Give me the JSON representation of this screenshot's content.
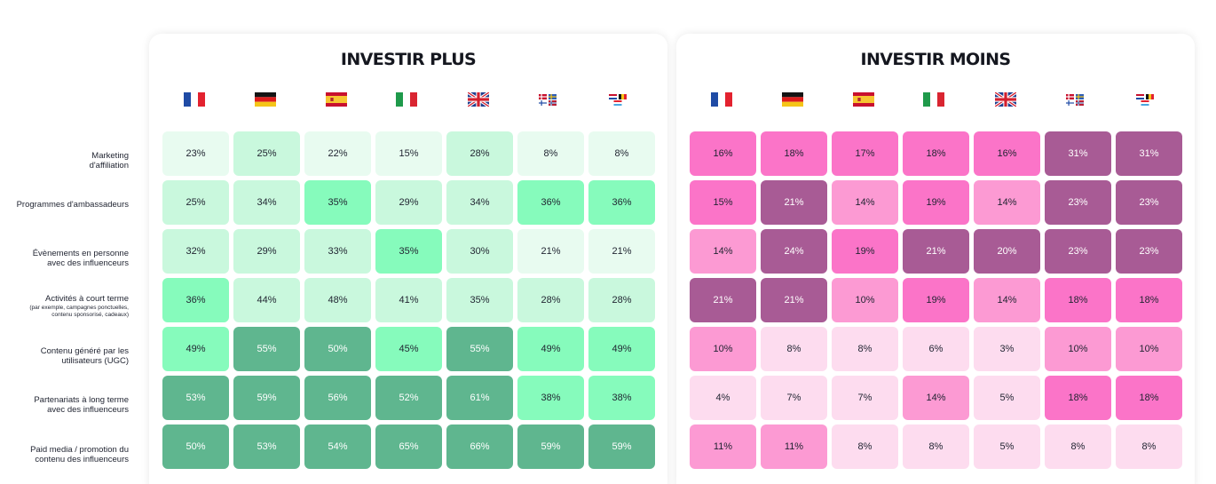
{
  "row_labels": [
    {
      "text": "Marketing\nd'affiliation",
      "sub": ""
    },
    {
      "text": "Programmes d'ambassadeurs",
      "sub": ""
    },
    {
      "text": "Évènements en personne\navec des influenceurs",
      "sub": ""
    },
    {
      "text": "Activités à court terme",
      "sub": "(par exemple, campagnes ponctuelles,\ncontenu sponsorisé, cadeaux)"
    },
    {
      "text": "Contenu généré par les\nutilisateurs (UGC)",
      "sub": ""
    },
    {
      "text": "Partenariats à long terme\navec des influenceurs",
      "sub": ""
    },
    {
      "text": "Paid media / promotion du\ncontenu des influenceurs",
      "sub": ""
    }
  ],
  "columns": [
    {
      "icon": "france-flag-icon"
    },
    {
      "icon": "germany-flag-icon"
    },
    {
      "icon": "spain-flag-icon"
    },
    {
      "icon": "italy-flag-icon"
    },
    {
      "icon": "uk-flag-icon"
    },
    {
      "icon": "nordics-flags-icon"
    },
    {
      "icon": "benelux-flags-icon"
    }
  ],
  "colors": {
    "plus_scale": [
      "#e8fbf0",
      "#c9f8dd",
      "#86fbbc",
      "#5fb68f"
    ],
    "moins_scale": [
      "#fddcef",
      "#fc9ad3",
      "#fb74c8",
      "#a85b95"
    ]
  },
  "chart_data": [
    {
      "type": "heatmap",
      "title": "INVESTIR PLUS",
      "color_levels": [
        [
          0,
          1,
          0,
          0,
          1,
          0,
          0
        ],
        [
          1,
          1,
          2,
          1,
          1,
          2,
          2
        ],
        [
          1,
          1,
          1,
          2,
          1,
          0,
          0
        ],
        [
          2,
          1,
          1,
          1,
          1,
          1,
          1
        ],
        [
          2,
          3,
          3,
          2,
          3,
          2,
          2
        ],
        [
          3,
          3,
          3,
          3,
          3,
          2,
          2
        ],
        [
          3,
          3,
          3,
          3,
          3,
          3,
          3
        ]
      ],
      "values": [
        [
          "23%",
          "25%",
          "22%",
          "15%",
          "28%",
          "8%",
          "8%"
        ],
        [
          "25%",
          "34%",
          "35%",
          "29%",
          "34%",
          "36%",
          "36%"
        ],
        [
          "32%",
          "29%",
          "33%",
          "35%",
          "30%",
          "21%",
          "21%"
        ],
        [
          "36%",
          "44%",
          "48%",
          "41%",
          "35%",
          "28%",
          "28%"
        ],
        [
          "49%",
          "55%",
          "50%",
          "45%",
          "55%",
          "49%",
          "49%"
        ],
        [
          "53%",
          "59%",
          "56%",
          "52%",
          "61%",
          "38%",
          "38%"
        ],
        [
          "50%",
          "53%",
          "54%",
          "65%",
          "66%",
          "59%",
          "59%"
        ]
      ]
    },
    {
      "type": "heatmap",
      "title": "INVESTIR MOINS",
      "color_levels": [
        [
          2,
          2,
          2,
          2,
          2,
          3,
          3
        ],
        [
          2,
          3,
          1,
          2,
          1,
          3,
          3
        ],
        [
          1,
          3,
          2,
          3,
          3,
          3,
          3
        ],
        [
          3,
          3,
          1,
          2,
          1,
          2,
          2
        ],
        [
          1,
          0,
          0,
          0,
          0,
          1,
          1
        ],
        [
          0,
          0,
          0,
          1,
          0,
          2,
          2
        ],
        [
          1,
          1,
          0,
          0,
          0,
          0,
          0
        ]
      ],
      "values": [
        [
          "16%",
          "18%",
          "17%",
          "18%",
          "16%",
          "31%",
          "31%"
        ],
        [
          "15%",
          "21%",
          "14%",
          "19%",
          "14%",
          "23%",
          "23%"
        ],
        [
          "14%",
          "24%",
          "19%",
          "21%",
          "20%",
          "23%",
          "23%"
        ],
        [
          "21%",
          "21%",
          "10%",
          "19%",
          "14%",
          "18%",
          "18%"
        ],
        [
          "10%",
          "8%",
          "8%",
          "6%",
          "3%",
          "10%",
          "10%"
        ],
        [
          "4%",
          "7%",
          "7%",
          "14%",
          "5%",
          "18%",
          "18%"
        ],
        [
          "11%",
          "11%",
          "8%",
          "8%",
          "5%",
          "8%",
          "8%"
        ]
      ]
    }
  ]
}
